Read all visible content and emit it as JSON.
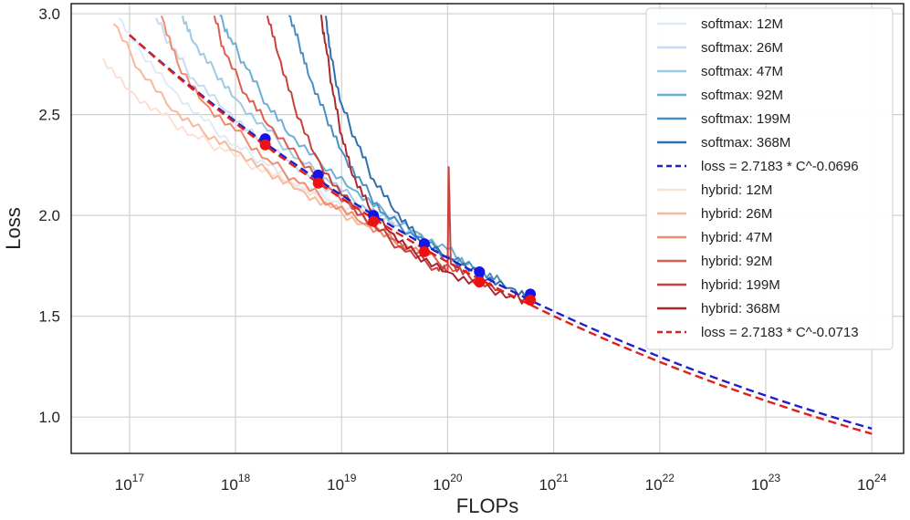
{
  "chart_data": {
    "type": "line",
    "xscale": "log10",
    "xlabel": "FLOPs",
    "ylabel": "Loss",
    "xlim_exp": [
      16.45,
      24.3
    ],
    "ylim": [
      0.82,
      3.05
    ],
    "grid": true,
    "legend_position": "top-right",
    "x_tick_exponents": [
      17,
      18,
      19,
      20,
      21,
      22,
      23,
      24
    ],
    "x_tick_base": "10",
    "x_tick_labels": [
      "17",
      "18",
      "19",
      "20",
      "21",
      "22",
      "23",
      "24"
    ],
    "y_ticks": [
      1.0,
      1.5,
      2.0,
      2.5,
      3.0
    ],
    "y_tick_labels": [
      "1.0",
      "1.5",
      "2.0",
      "2.5",
      "3.0"
    ],
    "colors": {
      "softmax": [
        "#deebf7",
        "#c6dbef",
        "#9ecae1",
        "#6baed6",
        "#4a8ec4",
        "#2f6fb0"
      ],
      "hybrid": [
        "#fde0d2",
        "#f8b99b",
        "#f08b70",
        "#dc5e4f",
        "#c8413c",
        "#a8282e"
      ],
      "softmax_fit": "#1f1fcc",
      "hybrid_fit": "#e0201a",
      "softmax_marker": "#1414e6",
      "hybrid_marker": "#ee1111"
    },
    "series": [
      {
        "name": "softmax: 12M",
        "group": "softmax",
        "x_exp": [
          16.9,
          17.1,
          17.4,
          17.7,
          18.0,
          18.3,
          18.6,
          18.9,
          19.3
        ],
        "loss": [
          2.98,
          2.82,
          2.63,
          2.47,
          2.35,
          2.25,
          2.15,
          2.07,
          1.98
        ]
      },
      {
        "name": "softmax: 26M",
        "group": "softmax",
        "x_exp": [
          17.25,
          17.4,
          17.6,
          17.9,
          18.2,
          18.5,
          18.8,
          19.1,
          19.5
        ],
        "loss": [
          2.98,
          2.83,
          2.68,
          2.52,
          2.38,
          2.27,
          2.16,
          2.06,
          1.96
        ]
      },
      {
        "name": "softmax: 47M",
        "group": "softmax",
        "x_exp": [
          17.5,
          17.6,
          17.8,
          18.0,
          18.3,
          18.6,
          18.9,
          19.2,
          19.5,
          19.8
        ],
        "loss": [
          2.99,
          2.86,
          2.72,
          2.58,
          2.42,
          2.28,
          2.16,
          2.05,
          1.95,
          1.87
        ]
      },
      {
        "name": "softmax: 92M",
        "group": "softmax",
        "x_exp": [
          17.85,
          17.95,
          18.1,
          18.3,
          18.5,
          18.8,
          19.1,
          19.4,
          19.7,
          20.0,
          20.2
        ],
        "loss": [
          2.99,
          2.88,
          2.73,
          2.55,
          2.4,
          2.26,
          2.13,
          2.02,
          1.92,
          1.83,
          1.76
        ]
      },
      {
        "name": "softmax: 199M",
        "group": "softmax",
        "x_exp": [
          18.5,
          18.6,
          18.7,
          18.85,
          19.0,
          19.2,
          19.4,
          19.7,
          20.0,
          20.3,
          20.5
        ],
        "loss": [
          3.0,
          2.85,
          2.68,
          2.5,
          2.32,
          2.15,
          2.01,
          1.89,
          1.8,
          1.72,
          1.67
        ]
      },
      {
        "name": "softmax: 368M",
        "group": "softmax",
        "x_exp": [
          18.85,
          18.9,
          19.0,
          19.15,
          19.3,
          19.5,
          19.7,
          20.0,
          20.3,
          20.6,
          20.8
        ],
        "loss": [
          3.0,
          2.78,
          2.55,
          2.35,
          2.18,
          2.02,
          1.9,
          1.79,
          1.71,
          1.64,
          1.6
        ]
      },
      {
        "name": "loss = 2.7183 * C^-0.0696",
        "group": "softmax_fit",
        "fit": true,
        "a": 2.7183,
        "b": -0.0696,
        "x_exp": [
          17.0,
          24.0
        ]
      },
      {
        "name": "hybrid: 12M",
        "group": "hybrid",
        "x_exp": [
          16.75,
          17.0,
          17.3,
          17.6,
          17.9,
          18.2,
          18.5,
          18.8,
          19.1
        ],
        "loss": [
          2.78,
          2.62,
          2.5,
          2.4,
          2.32,
          2.24,
          2.16,
          2.08,
          2.01
        ]
      },
      {
        "name": "hybrid: 26M",
        "group": "hybrid",
        "x_exp": [
          16.85,
          17.1,
          17.4,
          17.7,
          18.0,
          18.3,
          18.6,
          18.9,
          19.2,
          19.5
        ],
        "loss": [
          2.95,
          2.72,
          2.52,
          2.41,
          2.32,
          2.22,
          2.13,
          2.04,
          1.96,
          1.9
        ]
      },
      {
        "name": "hybrid: 47M",
        "group": "hybrid",
        "x_exp": [
          17.3,
          17.45,
          17.7,
          18.0,
          18.3,
          18.6,
          18.9,
          19.2,
          19.5,
          19.8
        ],
        "loss": [
          2.99,
          2.76,
          2.56,
          2.42,
          2.28,
          2.16,
          2.06,
          1.96,
          1.87,
          1.8
        ]
      },
      {
        "name": "hybrid: 92M",
        "group": "hybrid",
        "x_exp": [
          17.8,
          17.9,
          18.1,
          18.3,
          18.6,
          18.9,
          19.2,
          19.5,
          19.8,
          20.1
        ],
        "loss": [
          2.99,
          2.8,
          2.6,
          2.45,
          2.28,
          2.13,
          2.0,
          1.88,
          1.8,
          1.73
        ]
      },
      {
        "name": "hybrid: 199M",
        "group": "hybrid",
        "x_exp": [
          18.3,
          18.4,
          18.55,
          18.75,
          19.0,
          19.3,
          19.6,
          19.9,
          20.0,
          20.01,
          20.03,
          20.2,
          20.5
        ],
        "loss": [
          3.0,
          2.8,
          2.55,
          2.3,
          2.1,
          1.95,
          1.82,
          1.74,
          1.72,
          2.24,
          1.76,
          1.7,
          1.63
        ]
      },
      {
        "name": "hybrid: 368M",
        "group": "hybrid",
        "x_exp": [
          18.8,
          18.85,
          18.92,
          19.0,
          19.1,
          19.25,
          19.45,
          19.7,
          20.0,
          20.3,
          20.6,
          20.75
        ],
        "loss": [
          3.0,
          2.85,
          2.6,
          2.4,
          2.2,
          2.05,
          1.92,
          1.81,
          1.72,
          1.66,
          1.6,
          1.58
        ]
      },
      {
        "name": "loss = 2.7183 * C^-0.0713",
        "group": "hybrid_fit",
        "fit": true,
        "a": 2.7183,
        "b": -0.0713,
        "x_exp": [
          17.0,
          24.0
        ]
      }
    ],
    "markers": {
      "softmax": {
        "x_exp": [
          18.28,
          18.78,
          19.3,
          19.78,
          20.3,
          20.78
        ],
        "loss": [
          2.38,
          2.2,
          2.0,
          1.86,
          1.72,
          1.61
        ]
      },
      "hybrid": {
        "x_exp": [
          18.28,
          18.78,
          19.3,
          19.78,
          20.3,
          20.78
        ],
        "loss": [
          2.35,
          2.16,
          1.97,
          1.82,
          1.67,
          1.58
        ]
      }
    }
  }
}
